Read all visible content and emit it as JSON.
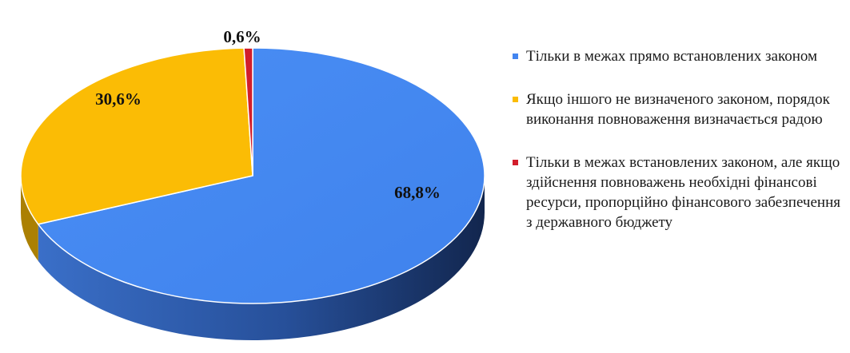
{
  "chart_data": {
    "type": "pie",
    "series": [
      {
        "name": "Тільки в межах прямо встановлених законом",
        "value": 68.8,
        "label": "68,8%",
        "color": "#4285F0"
      },
      {
        "name": "Якщо іншого не визначеного законом, порядок виконання повноваження визначається радою",
        "value": 30.6,
        "label": "30,6%",
        "color": "#FBBC05"
      },
      {
        "name": "Тільки в межах встановлених законом, але якщо здійснення повноважень необхідні фінансові ресурси, пропорційно фінансового забезпечення з державного бюджету",
        "value": 0.6,
        "label": "0,6%",
        "color": "#D21E2B"
      }
    ],
    "legend_position": "right",
    "style": "3d"
  }
}
